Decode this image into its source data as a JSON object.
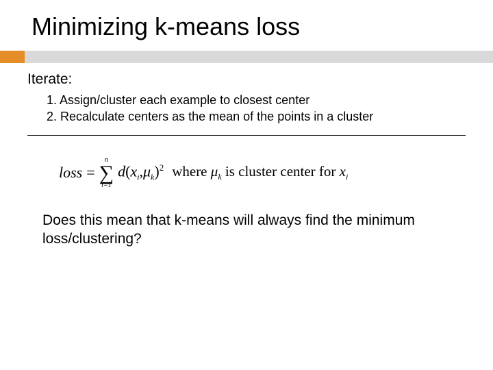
{
  "title": "Minimizing k-means loss",
  "colors": {
    "accent": "#e58e27",
    "underline": "#d9d9d9",
    "text": "#000000",
    "bg": "#ffffff"
  },
  "iterate_label": "Iterate:",
  "steps": {
    "s1": "1. Assign/cluster each example to closest center",
    "s2": "2. Recalculate centers as the mean of the points in a cluster"
  },
  "formula": {
    "loss_word": "loss",
    "equals": "=",
    "sum_top": "n",
    "sum_bottom": "i=1",
    "d": "d",
    "lparen": "(",
    "x": "x",
    "xi_sub": "i",
    "comma": ",",
    "mu": "μ",
    "mu_sub": "k",
    "rparen": ")",
    "squared": "2",
    "where": " where ",
    "mu2": "μ",
    "mu2_sub": "k",
    "tail": " is cluster center for ",
    "x2": "x",
    "x2_sub": "i"
  },
  "question": "Does this mean that k-means will always find the minimum loss/clustering?"
}
